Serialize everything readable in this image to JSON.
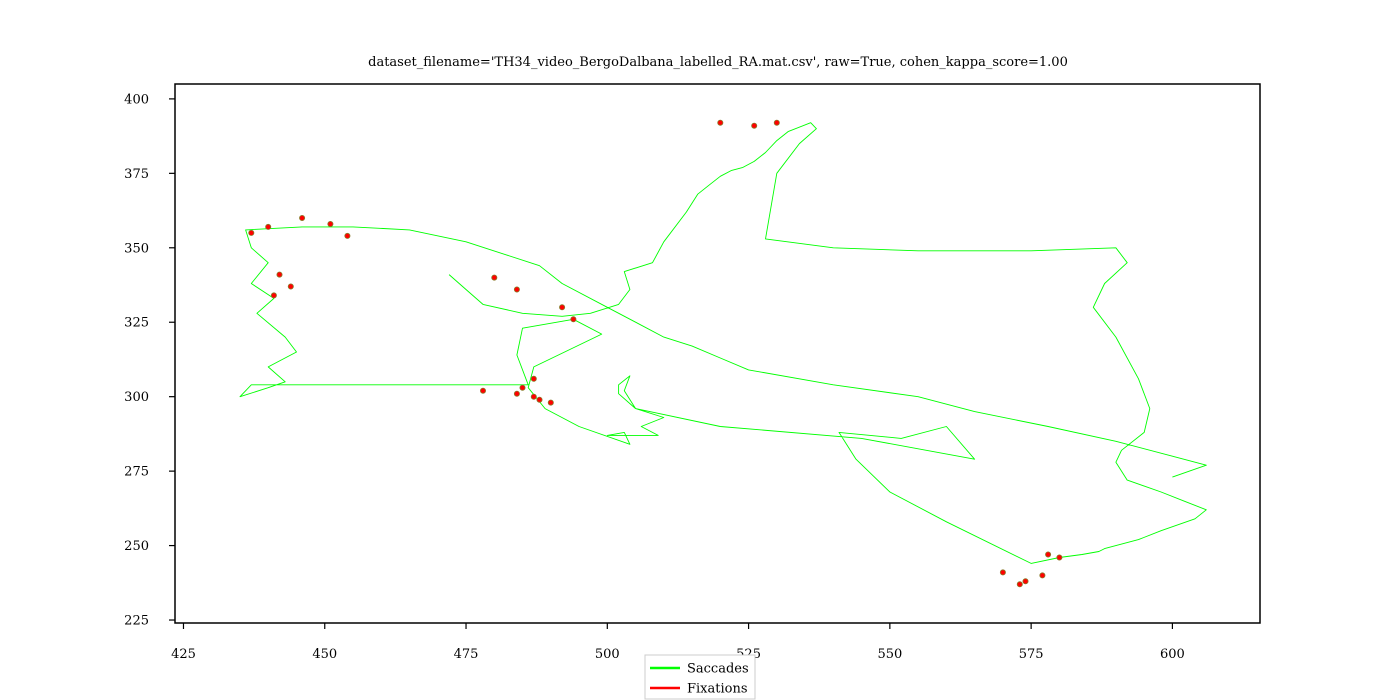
{
  "chart_data": {
    "type": "line",
    "title": "dataset_filename='TH34_video_BergoDalbana_labelled_RA.mat.csv', raw=True, cohen_kappa_score=1.00",
    "xlabel": "",
    "ylabel": "",
    "xlim": [
      423.5,
      615.5
    ],
    "ylim": [
      224,
      405
    ],
    "xticks": [
      425,
      450,
      475,
      500,
      525,
      550,
      575,
      600
    ],
    "yticks": [
      225,
      250,
      275,
      300,
      325,
      350,
      375,
      400
    ],
    "grid": false,
    "legend_position": "bottom-center",
    "series": [
      {
        "name": "Saccades",
        "color": "#00ff00",
        "x": [
          472,
          475,
          478,
          485,
          492,
          497,
          502,
          504,
          503,
          508,
          510,
          514,
          516,
          518,
          520,
          522,
          524,
          526,
          528,
          530,
          532,
          536,
          537,
          534,
          530,
          528,
          540,
          555,
          575,
          590,
          592,
          588,
          586,
          590,
          594,
          596,
          595,
          591,
          590,
          592,
          598,
          602,
          606,
          604,
          598,
          594,
          590,
          588,
          587,
          584,
          580,
          575,
          560,
          550,
          544,
          541,
          552,
          560,
          565,
          545,
          520,
          505,
          502,
          502,
          504,
          503,
          505,
          510,
          506,
          509,
          500,
          503,
          504,
          495,
          489,
          486,
          487,
          499,
          494,
          485,
          484,
          486,
          472,
          452,
          437,
          435,
          440,
          443,
          440,
          445,
          443,
          438,
          441,
          437,
          440,
          437,
          436,
          446,
          455,
          465,
          475,
          488,
          492,
          500,
          505,
          510,
          515,
          520,
          525,
          540,
          555,
          565,
          578,
          590,
          600,
          606,
          600
        ],
        "y": [
          341,
          336,
          331,
          328,
          327,
          328,
          331,
          336,
          342,
          345,
          352,
          362,
          368,
          371,
          374,
          376,
          377,
          379,
          382,
          386,
          389,
          392,
          390,
          385,
          375,
          353,
          350,
          349,
          349,
          350,
          345,
          338,
          330,
          320,
          306,
          296,
          288,
          282,
          278,
          272,
          268,
          265,
          262,
          259,
          255,
          252,
          250,
          249,
          248,
          247,
          246,
          244,
          258,
          268,
          279,
          288,
          286,
          290,
          279,
          286,
          290,
          296,
          301,
          304,
          307,
          302,
          296,
          293,
          290,
          287,
          287,
          288,
          284,
          290,
          296,
          303,
          310,
          321,
          326,
          323,
          314,
          304,
          304,
          304,
          304,
          300,
          303,
          305,
          310,
          315,
          320,
          328,
          333,
          338,
          345,
          350,
          356,
          357,
          357,
          356,
          352,
          344,
          338,
          330,
          325,
          320,
          317,
          313,
          309,
          304,
          300,
          295,
          290,
          285,
          280,
          277,
          273
        ]
      },
      {
        "name": "Fixations",
        "color": "#ff0000",
        "x": [
          440,
          446,
          451,
          454,
          437,
          442,
          444,
          441,
          478,
          484,
          487,
          490,
          488,
          480,
          484,
          492,
          494,
          520,
          526,
          530,
          485,
          487,
          570,
          574,
          577,
          580,
          578,
          573
        ],
        "y": [
          357,
          360,
          358,
          354,
          355,
          341,
          337,
          334,
          302,
          301,
          300,
          298,
          299,
          340,
          336,
          330,
          326,
          392,
          391,
          392,
          303,
          306,
          241,
          238,
          240,
          246,
          247,
          237
        ]
      }
    ]
  }
}
